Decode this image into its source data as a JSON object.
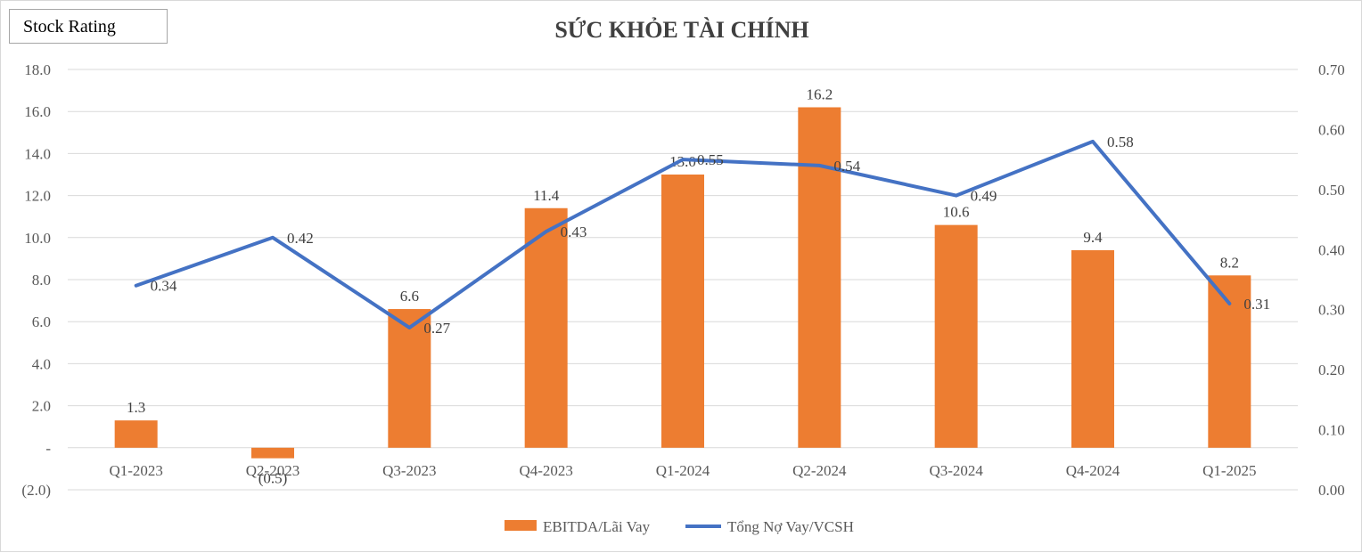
{
  "badge": "Stock Rating",
  "chart_data": {
    "type": "bar",
    "title": "SỨC KHỎE TÀI CHÍNH",
    "categories": [
      "Q1-2023",
      "Q2-2023",
      "Q3-2023",
      "Q4-2023",
      "Q1-2024",
      "Q2-2024",
      "Q3-2024",
      "Q4-2024",
      "Q1-2025"
    ],
    "series": [
      {
        "name": "EBITDA/Lãi Vay",
        "type": "bar",
        "axis": "left",
        "color": "#ED7D31",
        "values": [
          1.3,
          -0.5,
          6.6,
          11.4,
          13.0,
          16.2,
          10.6,
          9.4,
          8.2
        ],
        "labels": [
          "1.3",
          "(0.5)",
          "6.6",
          "11.4",
          "13.0",
          "16.2",
          "10.6",
          "9.4",
          "8.2"
        ]
      },
      {
        "name": "Tổng Nợ Vay/VCSH",
        "type": "line",
        "axis": "right",
        "color": "#4472C4",
        "values": [
          0.34,
          0.42,
          0.27,
          0.43,
          0.55,
          0.54,
          0.49,
          0.58,
          0.31
        ],
        "labels": [
          "0.34",
          "0.42",
          "0.27",
          "0.43",
          "0.55",
          "0.54",
          "0.49",
          "0.58",
          "0.31"
        ]
      }
    ],
    "y_left": {
      "ylim": [
        -2,
        18
      ],
      "ticks": [
        18,
        16,
        14,
        12,
        10,
        8,
        6,
        4,
        2,
        0,
        -2
      ],
      "tick_labels": [
        "18.0",
        "16.0",
        "14.0",
        "12.0",
        "10.0",
        "8.0",
        "6.0",
        "4.0",
        "2.0",
        "-",
        "(2.0)"
      ]
    },
    "y_right": {
      "ylim": [
        0,
        0.7
      ],
      "ticks": [
        0.7,
        0.6,
        0.5,
        0.4,
        0.3,
        0.2,
        0.1,
        0.0
      ],
      "tick_labels": [
        "0.70",
        "0.60",
        "0.50",
        "0.40",
        "0.30",
        "0.20",
        "0.10",
        "0.00"
      ]
    },
    "grid": true,
    "legend_position": "bottom"
  }
}
